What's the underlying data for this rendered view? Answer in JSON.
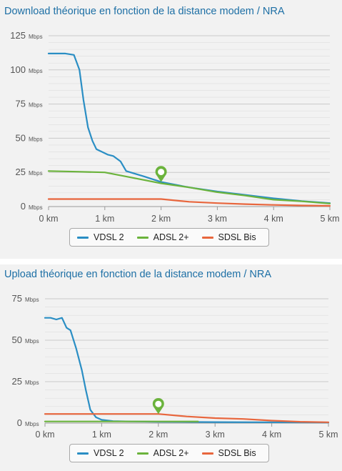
{
  "chart_data": [
    {
      "type": "line",
      "title": "Download théorique en fonction de la distance modem / NRA",
      "xlabel": "",
      "ylabel": "",
      "x_unit": "km",
      "y_unit": "Mbps",
      "xlim": [
        0,
        5
      ],
      "ylim": [
        0,
        125
      ],
      "xticks": [
        0,
        1,
        2,
        3,
        4,
        5
      ],
      "yticks": [
        0,
        25,
        50,
        75,
        100,
        125
      ],
      "grid": true,
      "legend_position": "bottom",
      "marker": {
        "x": 2,
        "y": 18,
        "shape": "map-pin-icon",
        "color": "#6bb33c"
      },
      "series": [
        {
          "name": "VDSL 2",
          "color": "#2a8ec4",
          "points": [
            [
              0,
              112
            ],
            [
              0.1,
              112
            ],
            [
              0.3,
              112
            ],
            [
              0.45,
              111
            ],
            [
              0.55,
              100
            ],
            [
              0.62,
              78
            ],
            [
              0.7,
              58
            ],
            [
              0.78,
              48
            ],
            [
              0.85,
              42
            ],
            [
              0.95,
              40
            ],
            [
              1.05,
              38
            ],
            [
              1.15,
              37
            ],
            [
              1.28,
              33
            ],
            [
              1.38,
              26
            ],
            [
              1.5,
              24.5
            ],
            [
              1.7,
              22
            ],
            [
              2,
              18
            ],
            [
              2.5,
              14
            ],
            [
              3,
              11
            ],
            [
              3.5,
              8.5
            ],
            [
              4,
              6
            ],
            [
              4.5,
              4
            ],
            [
              5,
              2.5
            ]
          ]
        },
        {
          "name": "ADSL 2+",
          "color": "#6bb33c",
          "points": [
            [
              0,
              26
            ],
            [
              0.5,
              25.5
            ],
            [
              1,
              25
            ],
            [
              1.5,
              21
            ],
            [
              2,
              17
            ],
            [
              2.5,
              14
            ],
            [
              3,
              10.5
            ],
            [
              3.5,
              8
            ],
            [
              4,
              5
            ],
            [
              4.5,
              3.8
            ],
            [
              5,
              2.2
            ]
          ]
        },
        {
          "name": "SDSL Bis",
          "color": "#e8663d",
          "points": [
            [
              0,
              5.5
            ],
            [
              0.5,
              5.5
            ],
            [
              1,
              5.5
            ],
            [
              1.5,
              5.5
            ],
            [
              2,
              5.5
            ],
            [
              2.5,
              3.5
            ],
            [
              3,
              2.5
            ],
            [
              3.5,
              1.8
            ],
            [
              4,
              1.2
            ],
            [
              4.5,
              0.8
            ],
            [
              5,
              0.5
            ]
          ]
        }
      ]
    },
    {
      "type": "line",
      "title": "Upload théorique en fonction de la distance modem / NRA",
      "xlabel": "",
      "ylabel": "",
      "x_unit": "km",
      "y_unit": "Mbps",
      "xlim": [
        0,
        5
      ],
      "ylim": [
        0,
        75
      ],
      "xticks": [
        0,
        1,
        2,
        3,
        4,
        5
      ],
      "yticks": [
        0,
        25,
        50,
        75
      ],
      "grid": true,
      "legend_position": "bottom",
      "marker": {
        "x": 2,
        "y": 5.5,
        "shape": "map-pin-icon",
        "color": "#6bb33c"
      },
      "series": [
        {
          "name": "VDSL 2",
          "color": "#2a8ec4",
          "points": [
            [
              0,
              63.5
            ],
            [
              0.1,
              63.5
            ],
            [
              0.2,
              62.5
            ],
            [
              0.3,
              63.5
            ],
            [
              0.38,
              57.5
            ],
            [
              0.45,
              56
            ],
            [
              0.55,
              45
            ],
            [
              0.65,
              32
            ],
            [
              0.72,
              20
            ],
            [
              0.8,
              8
            ],
            [
              0.9,
              3.5
            ],
            [
              1,
              2
            ],
            [
              1.2,
              1.2
            ],
            [
              1.5,
              1
            ],
            [
              2,
              0.8
            ],
            [
              3,
              0.6
            ],
            [
              4,
              0.5
            ],
            [
              5,
              0.4
            ]
          ]
        },
        {
          "name": "ADSL 2+",
          "color": "#6bb33c",
          "points": [
            [
              0,
              1
            ],
            [
              1,
              1
            ],
            [
              2,
              1
            ],
            [
              2.7,
              1
            ]
          ]
        },
        {
          "name": "SDSL Bis",
          "color": "#e8663d",
          "points": [
            [
              0,
              5.5
            ],
            [
              0.5,
              5.5
            ],
            [
              1,
              5.5
            ],
            [
              1.5,
              5.5
            ],
            [
              2,
              5.5
            ],
            [
              2.5,
              4
            ],
            [
              3,
              3
            ],
            [
              3.5,
              2.5
            ],
            [
              4,
              1.5
            ],
            [
              4.5,
              0.8
            ],
            [
              5,
              0.5
            ]
          ]
        }
      ]
    }
  ]
}
